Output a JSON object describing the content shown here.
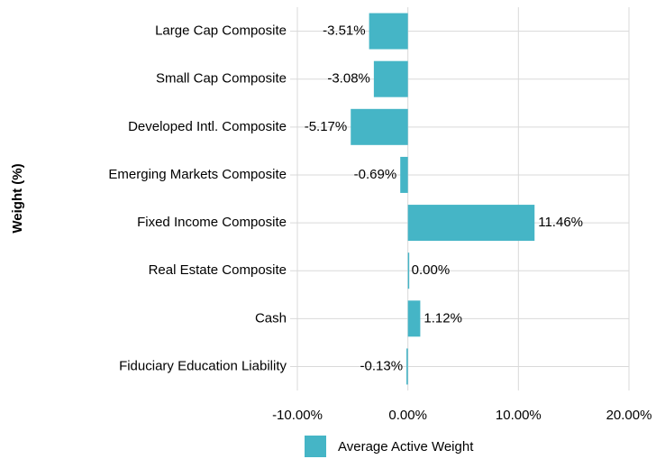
{
  "chart_data": {
    "type": "barh",
    "y_label": "Weight (%)",
    "categories": [
      "Large Cap Composite",
      "Small Cap Composite",
      "Developed Intl. Composite",
      "Emerging Markets Composite",
      "Fixed Income Composite",
      "Real Estate Composite",
      "Cash",
      "Fiduciary Education Liability"
    ],
    "series": [
      {
        "name": "Average Active Weight",
        "color": "#45b5c6",
        "values": [
          -3.51,
          -3.08,
          -5.17,
          -0.69,
          11.46,
          0.0,
          1.12,
          -0.13
        ],
        "value_labels": [
          "-3.51%",
          "-3.08%",
          "-5.17%",
          "-0.69%",
          "11.46%",
          "0.00%",
          "1.12%",
          "-0.13%"
        ]
      }
    ],
    "xlim": [
      -10,
      20
    ],
    "xticks": [
      {
        "value": -10,
        "label": "-10.00%"
      },
      {
        "value": 0,
        "label": "0.00%"
      },
      {
        "value": 10,
        "label": "10.00%"
      },
      {
        "value": 20,
        "label": "20.00%"
      }
    ],
    "grid": true,
    "legend": "bottom"
  }
}
